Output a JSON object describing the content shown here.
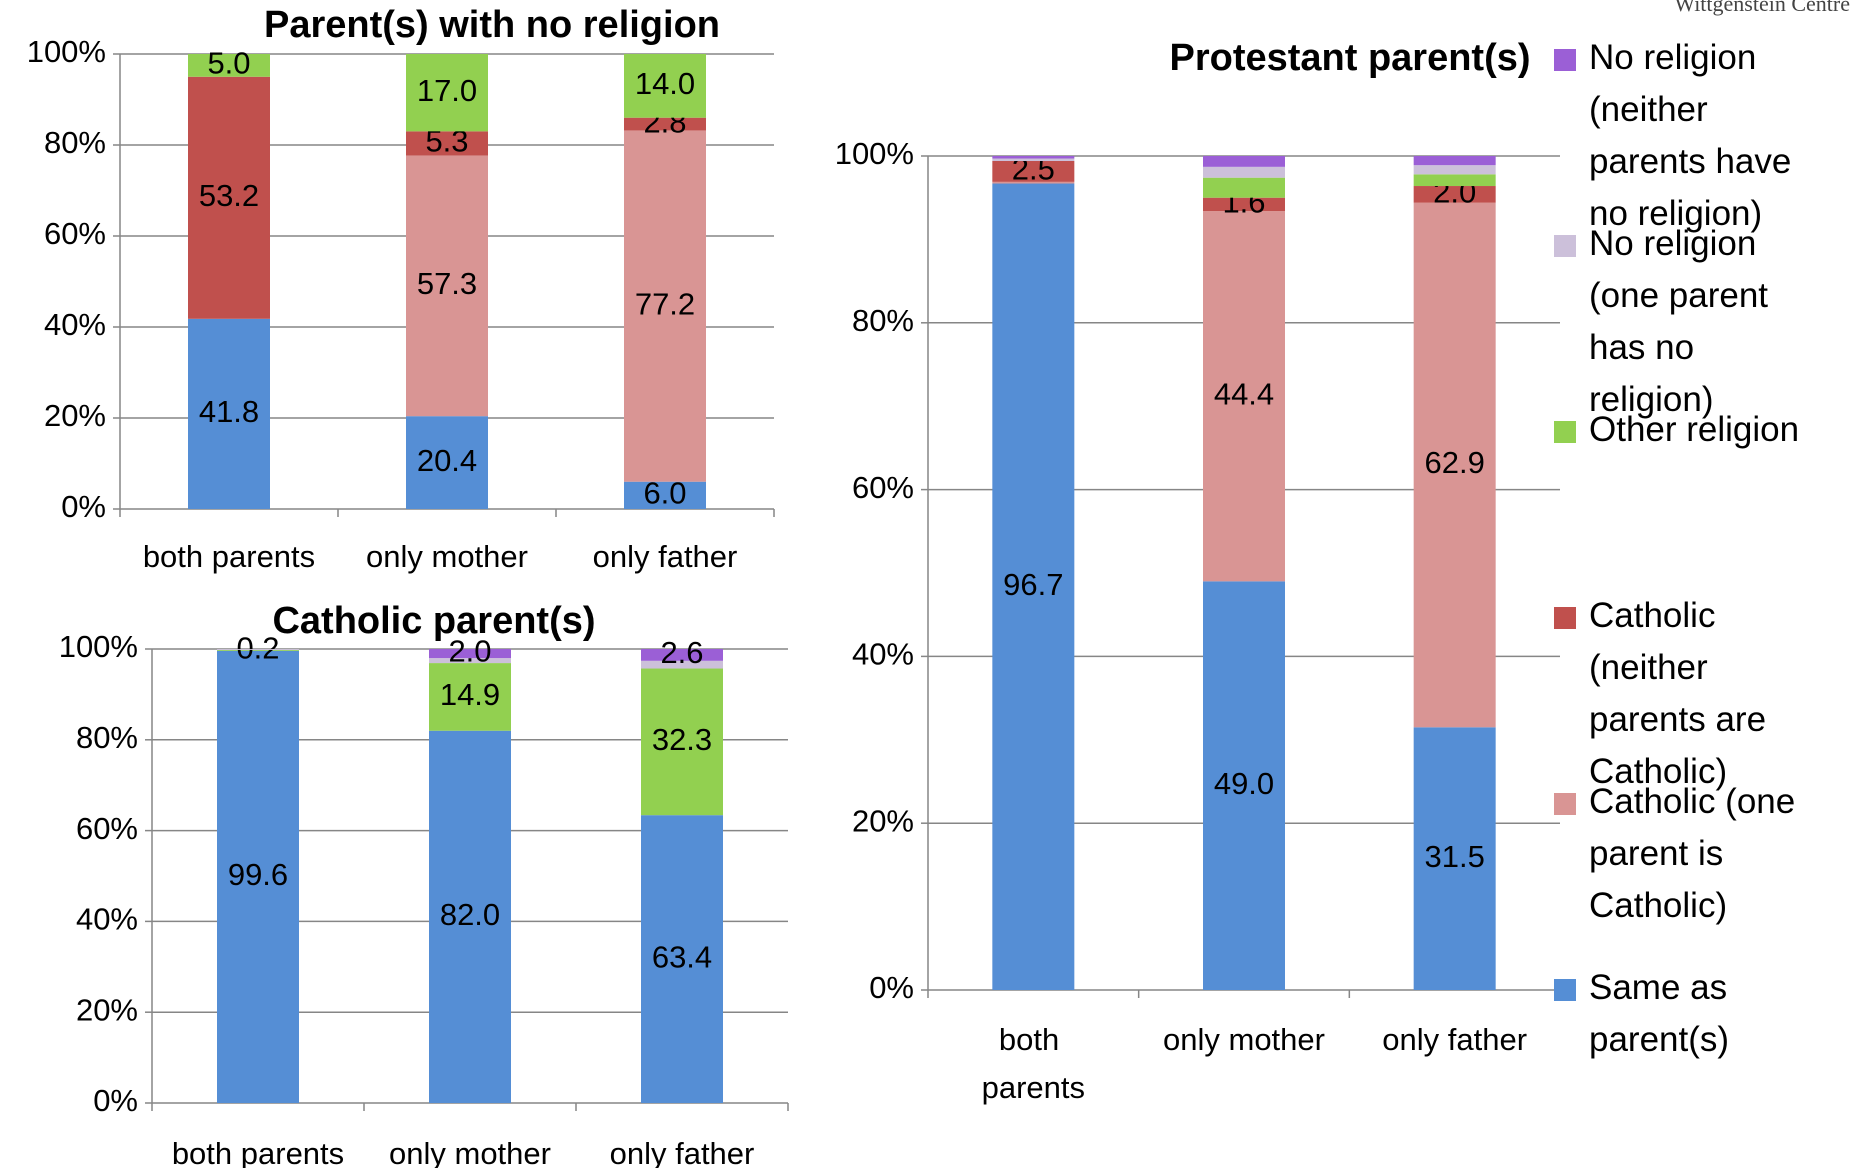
{
  "watermark": "Wittgenstein Centre",
  "chart_data": [
    {
      "type": "stacked_bar",
      "title": "Parent(s) with no religion",
      "categories": [
        "both parents",
        "only mother",
        "only father"
      ],
      "ylim": [
        0,
        100
      ],
      "yticks": [
        {
          "value": 0,
          "label": "0%"
        },
        {
          "value": 20,
          "label": "20%"
        },
        {
          "value": 40,
          "label": "40%"
        },
        {
          "value": 60,
          "label": "60%"
        },
        {
          "value": 80,
          "label": "80%"
        },
        {
          "value": 100,
          "label": "100%"
        }
      ],
      "grid": true,
      "series": [
        {
          "name": "Same as parent(s)",
          "color": "#558ed5",
          "values": [
            41.8,
            20.4,
            6.0
          ],
          "value_labels": [
            "41.8",
            "20.4",
            "6.0"
          ]
        },
        {
          "name": "Catholic (one parent is Catholic)",
          "color": "#d99594",
          "values": [
            null,
            57.3,
            77.2
          ],
          "value_labels": [
            null,
            "57.3",
            "77.2"
          ]
        },
        {
          "name": "Catholic (neither parents are Catholic)",
          "color": "#c0504d",
          "values": [
            53.2,
            5.3,
            2.8
          ],
          "value_labels": [
            "53.2",
            "5.3",
            "2.8"
          ]
        },
        {
          "name": "Other religion",
          "color": "#92d050",
          "values": [
            5.0,
            17.0,
            14.0
          ],
          "value_labels": [
            "5.0",
            "17.0",
            "14.0"
          ]
        },
        {
          "name": "No religion (one parent has no religion)",
          "color": "#ccc0da",
          "values": [
            null,
            null,
            null
          ],
          "value_labels": [
            null,
            null,
            null
          ]
        },
        {
          "name": "No religion (neither parents have no religion)",
          "color": "#9b5fd6",
          "values": [
            null,
            null,
            null
          ],
          "value_labels": [
            null,
            null,
            null
          ]
        }
      ]
    },
    {
      "type": "stacked_bar",
      "title": "Catholic parent(s)",
      "categories": [
        "both parents",
        "only mother",
        "only father"
      ],
      "ylim": [
        0,
        100
      ],
      "yticks": [
        {
          "value": 0,
          "label": "0%"
        },
        {
          "value": 20,
          "label": "20%"
        },
        {
          "value": 40,
          "label": "40%"
        },
        {
          "value": 60,
          "label": "60%"
        },
        {
          "value": 80,
          "label": "80%"
        },
        {
          "value": 100,
          "label": "100%"
        }
      ],
      "grid": true,
      "series": [
        {
          "name": "Same as parent(s)",
          "color": "#558ed5",
          "values": [
            99.6,
            82.0,
            63.4
          ],
          "value_labels": [
            "99.6",
            "82.0",
            "63.4"
          ]
        },
        {
          "name": "Catholic (one parent is Catholic)",
          "color": "#d99594",
          "values": [
            null,
            null,
            null
          ],
          "value_labels": [
            null,
            null,
            null
          ]
        },
        {
          "name": "Catholic (neither parents are Catholic)",
          "color": "#c0504d",
          "values": [
            null,
            null,
            null
          ],
          "value_labels": [
            null,
            null,
            null
          ]
        },
        {
          "name": "Other religion",
          "color": "#92d050",
          "values": [
            0.2,
            14.9,
            32.3
          ],
          "value_labels": [
            "0.2",
            "14.9",
            "32.3"
          ]
        },
        {
          "name": "No religion (one parent has no religion)",
          "color": "#ccc0da",
          "values": [
            0.2,
            1.1,
            1.7
          ],
          "value_labels": [
            null,
            null,
            null
          ]
        },
        {
          "name": "No religion (neither parents have no religion)",
          "color": "#9b5fd6",
          "values": [
            null,
            2.0,
            2.6
          ],
          "value_labels": [
            null,
            "2.0",
            "2.6"
          ]
        }
      ]
    },
    {
      "type": "stacked_bar",
      "title": "Protestant parent(s)",
      "categories": [
        "both parents",
        "only mother",
        "only father"
      ],
      "ylim": [
        0,
        100
      ],
      "yticks": [
        {
          "value": 0,
          "label": "0%"
        },
        {
          "value": 20,
          "label": "20%"
        },
        {
          "value": 40,
          "label": "40%"
        },
        {
          "value": 60,
          "label": "60%"
        },
        {
          "value": 80,
          "label": "80%"
        },
        {
          "value": 100,
          "label": "100%"
        }
      ],
      "grid": true,
      "legend": "right",
      "series": [
        {
          "name": "Same as parent(s)",
          "color": "#558ed5",
          "values": [
            96.7,
            49.0,
            31.5
          ],
          "value_labels": [
            "96.7",
            "49.0",
            "31.5"
          ]
        },
        {
          "name": "Catholic (one parent is Catholic)",
          "color": "#d99594",
          "values": [
            0.2,
            44.4,
            62.9
          ],
          "value_labels": [
            null,
            "44.4",
            "62.9"
          ]
        },
        {
          "name": "Catholic (neither parents are Catholic)",
          "color": "#c0504d",
          "values": [
            2.5,
            1.6,
            2.0
          ],
          "value_labels": [
            "2.5",
            "1.6",
            "2.0"
          ]
        },
        {
          "name": "Other religion",
          "color": "#92d050",
          "values": [
            null,
            2.4,
            1.4
          ],
          "value_labels": [
            null,
            null,
            null
          ]
        },
        {
          "name": "No religion (one parent has no religion)",
          "color": "#ccc0da",
          "values": [
            0.3,
            1.3,
            1.1
          ],
          "value_labels": [
            null,
            null,
            null
          ]
        },
        {
          "name": "No religion (neither parents have no religion)",
          "color": "#9b5fd6",
          "values": [
            0.3,
            1.3,
            1.1
          ],
          "value_labels": [
            null,
            null,
            null
          ]
        }
      ]
    }
  ]
}
